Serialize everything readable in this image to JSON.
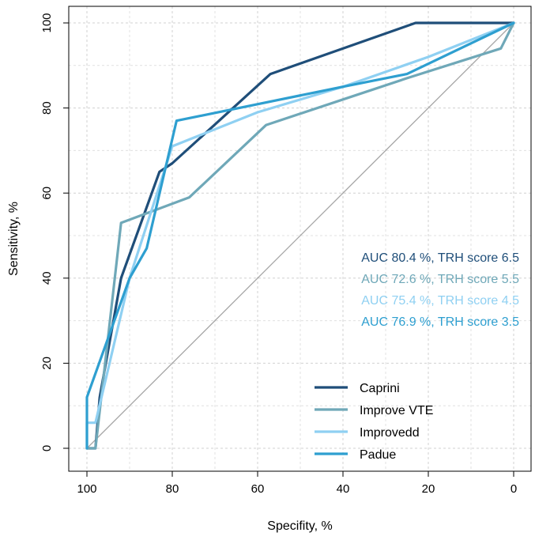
{
  "chart_data": {
    "type": "line",
    "title": "",
    "xlabel": "Specifity, %",
    "ylabel": "Sensitivity, %",
    "xlim": [
      100,
      0
    ],
    "ylim": [
      0,
      100
    ],
    "x_ticks": [
      100,
      80,
      60,
      40,
      20,
      0
    ],
    "y_ticks": [
      0,
      20,
      40,
      60,
      80,
      100
    ],
    "x_tick_labels": [
      "100",
      "80",
      "60",
      "40",
      "20",
      "0"
    ],
    "y_tick_labels": [
      "0",
      "20",
      "40",
      "60",
      "80",
      "100"
    ],
    "grid": true,
    "reference_line": {
      "from": [
        100,
        0
      ],
      "to": [
        0,
        100
      ],
      "color": "#a6a6a6"
    },
    "series": [
      {
        "name": "Caprini",
        "color": "#1f4e79",
        "points": [
          [
            100,
            0
          ],
          [
            98,
            0
          ],
          [
            97,
            12
          ],
          [
            92,
            40
          ],
          [
            83,
            65
          ],
          [
            80,
            67
          ],
          [
            57,
            88
          ],
          [
            23,
            100
          ],
          [
            0,
            100
          ]
        ]
      },
      {
        "name": "Improve VTE",
        "color": "#6fa8b8",
        "points": [
          [
            100,
            0
          ],
          [
            98,
            0
          ],
          [
            92,
            53
          ],
          [
            76,
            59
          ],
          [
            58,
            76
          ],
          [
            40,
            82
          ],
          [
            25,
            87
          ],
          [
            3,
            94
          ],
          [
            0,
            100
          ]
        ]
      },
      {
        "name": "Improvedd",
        "color": "#8fd0f2",
        "points": [
          [
            100,
            0
          ],
          [
            100,
            6
          ],
          [
            98,
            6
          ],
          [
            90,
            40
          ],
          [
            80,
            71
          ],
          [
            60,
            79
          ],
          [
            40,
            85
          ],
          [
            20,
            92
          ],
          [
            0,
            100
          ]
        ]
      },
      {
        "name": "Padue",
        "color": "#2e9fd0",
        "points": [
          [
            100,
            0
          ],
          [
            100,
            12
          ],
          [
            90,
            40
          ],
          [
            86,
            47
          ],
          [
            79,
            77
          ],
          [
            40,
            85
          ],
          [
            25,
            88
          ],
          [
            0,
            100
          ]
        ]
      }
    ],
    "annotations": [
      {
        "text": "AUC 80.4 %, TRH score 6.5",
        "color": "#1f4e79"
      },
      {
        "text": "AUC 72.6 %, TRH score 5.5",
        "color": "#6fa8b8"
      },
      {
        "text": "AUC 75.4 %, TRH score 4.5",
        "color": "#8fd0f2"
      },
      {
        "text": "AUC 76.9 %, TRH score 3.5",
        "color": "#2e9fd0"
      }
    ],
    "legend": {
      "position": "bottom-right",
      "entries": [
        "Caprini",
        "Improve VTE",
        "Improvedd",
        "Padue"
      ]
    }
  }
}
